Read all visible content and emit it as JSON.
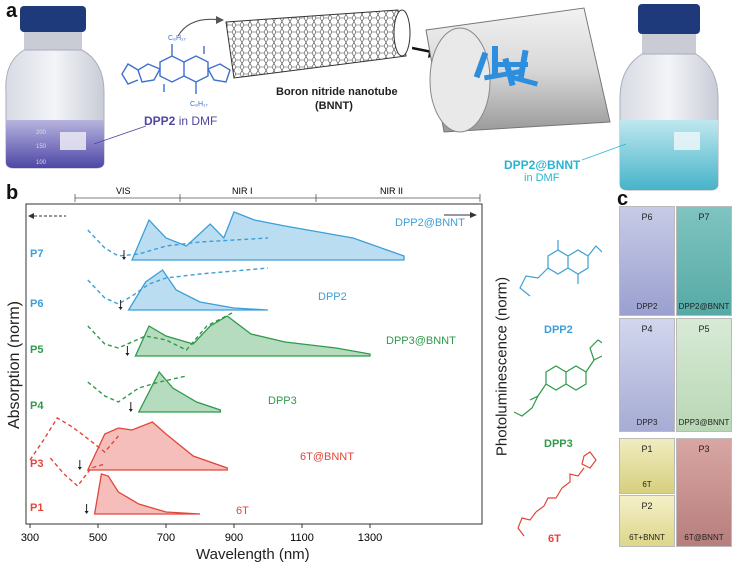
{
  "panel_a": {
    "letter": "a",
    "dpp2_solution": {
      "bold": "DPP2",
      "rest": " in DMF"
    },
    "bnnt_title": "Boron nitride nanotube",
    "bnnt_abbrev": "(BNNT)",
    "dpp2_bnnt_solution": {
      "line1": "DPP2@BNNT",
      "line2": "in DMF"
    },
    "alkyl_label": "C₈H₁₇"
  },
  "panel_b": {
    "letter": "b",
    "regions": [
      "VIS",
      "NIR I",
      "NIR II"
    ],
    "ylabel": "Absorption (norm)",
    "ylabel_right": "Photoluminescence (norm)",
    "xlabel": "Wavelength (nm)",
    "xticks": [
      "300",
      "500",
      "700",
      "900",
      "1100",
      "1300"
    ],
    "rows": [
      {
        "id": "P7",
        "label": "DPP2@BNNT",
        "color": "#3d9fd8"
      },
      {
        "id": "P6",
        "label": "DPP2",
        "color": "#3d9fd8"
      },
      {
        "id": "P5",
        "label": "DPP3@BNNT",
        "color": "#2e9a4a"
      },
      {
        "id": "P4",
        "label": "DPP3",
        "color": "#2e9a4a"
      },
      {
        "id": "P3",
        "label": "6T@BNNT",
        "color": "#e2463a"
      },
      {
        "id": "P1",
        "label": "6T",
        "color": "#e2463a"
      }
    ],
    "molecules": [
      {
        "name": "DPP2",
        "color": "#3d9fd8"
      },
      {
        "name": "DPP3",
        "color": "#2e9a4a"
      },
      {
        "name": "6T",
        "color": "#e2463a"
      }
    ]
  },
  "panel_c": {
    "letter": "c",
    "vials": [
      {
        "top": "P6",
        "bottom": "DPP2"
      },
      {
        "top": "P7",
        "bottom": "DPP2@BNNT"
      },
      {
        "top": "P4",
        "bottom": "DPP3"
      },
      {
        "top": "P5",
        "bottom": "DPP3@BNNT"
      },
      {
        "top": "P1",
        "bottom": "6T"
      },
      {
        "top": "P2",
        "bottom": "6T+BNNT"
      },
      {
        "top": "P3",
        "bottom": "6T@BNNT"
      }
    ]
  }
}
